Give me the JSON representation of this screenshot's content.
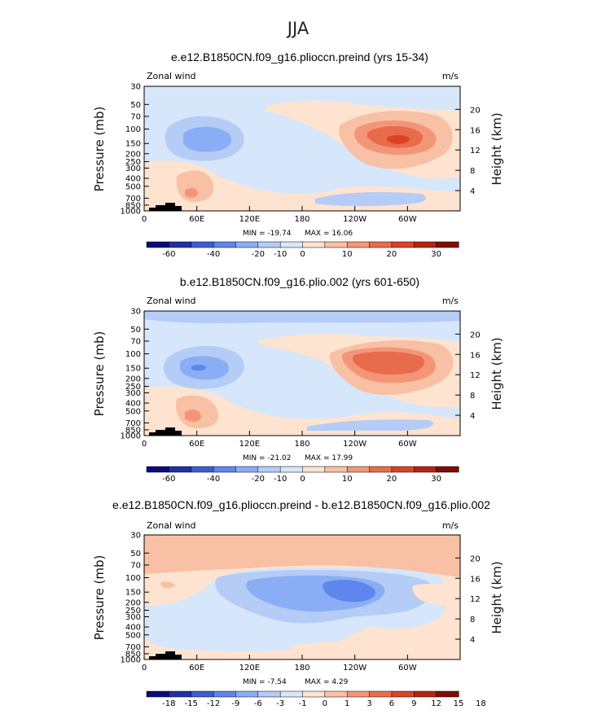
{
  "figure_title": "JJA",
  "chart_data": [
    {
      "type": "contour",
      "title": "e.e12.B1850CN.f09_g16.plioccn.preind (yrs 15-34)",
      "left_label": "Zonal wind",
      "right_label": "m/s",
      "ylabel": "Pressure (mb)",
      "y2label": "Height (km)",
      "pressure_ticks": [
        "30",
        "50",
        "70",
        "100",
        "150",
        "200",
        "250",
        "300",
        "400",
        "500",
        "700",
        "850",
        "1000"
      ],
      "height_ticks": [
        "4",
        "8",
        "12",
        "16",
        "20"
      ],
      "x_ticks": [
        "0",
        "60E",
        "120E",
        "180",
        "120W",
        "60W"
      ],
      "min_label": "MIN = -19.74",
      "max_label": "MAX =  16.06",
      "colorbar_labels": [
        "-60",
        "-40",
        "-20",
        "-10",
        "0",
        "10",
        "20",
        "30"
      ],
      "colorbar_colors": [
        "#0a0a7a",
        "#1f2fa8",
        "#3d5dd6",
        "#5e86ec",
        "#8aaef5",
        "#b4ccf6",
        "#d6e6fb",
        "#fde3d0",
        "#f8c0a4",
        "#f39678",
        "#e86c4c",
        "#db4226",
        "#b52512",
        "#7e0e06"
      ]
    },
    {
      "type": "contour",
      "title": "b.e12.B1850CN.f09_g16.plio.002 (yrs 601-650)",
      "left_label": "Zonal wind",
      "right_label": "m/s",
      "ylabel": "Pressure (mb)",
      "y2label": "Height (km)",
      "pressure_ticks": [
        "30",
        "50",
        "70",
        "100",
        "150",
        "200",
        "250",
        "300",
        "400",
        "500",
        "700",
        "850",
        "1000"
      ],
      "height_ticks": [
        "4",
        "8",
        "12",
        "16",
        "20"
      ],
      "x_ticks": [
        "0",
        "60E",
        "120E",
        "180",
        "120W",
        "60W"
      ],
      "min_label": "MIN = -21.02",
      "max_label": "MAX =  17.99",
      "colorbar_labels": [
        "-60",
        "-40",
        "-20",
        "-10",
        "0",
        "10",
        "20",
        "30"
      ],
      "colorbar_colors": [
        "#0a0a7a",
        "#1f2fa8",
        "#3d5dd6",
        "#5e86ec",
        "#8aaef5",
        "#b4ccf6",
        "#d6e6fb",
        "#fde3d0",
        "#f8c0a4",
        "#f39678",
        "#e86c4c",
        "#db4226",
        "#b52512",
        "#7e0e06"
      ]
    },
    {
      "type": "contour",
      "title": "e.e12.B1850CN.f09_g16.plioccn.preind - b.e12.B1850CN.f09_g16.plio.002",
      "left_label": "Zonal wind",
      "right_label": "m/s",
      "ylabel": "Pressure (mb)",
      "y2label": "Height (km)",
      "pressure_ticks": [
        "30",
        "50",
        "70",
        "100",
        "150",
        "200",
        "250",
        "300",
        "400",
        "500",
        "700",
        "850",
        "1000"
      ],
      "height_ticks": [
        "4",
        "8",
        "12",
        "16",
        "20"
      ],
      "x_ticks": [
        "0",
        "60E",
        "120E",
        "180",
        "120W",
        "60W"
      ],
      "min_label": "MIN =  -7.54",
      "max_label": "MAX =   4.29",
      "colorbar_labels": [
        "-18",
        "-15",
        "-12",
        "-9",
        "-6",
        "-3",
        "-1",
        "0",
        "1",
        "3",
        "6",
        "9",
        "12",
        "15",
        "18"
      ],
      "colorbar_colors": [
        "#0a0a7a",
        "#1f2fa8",
        "#3d5dd6",
        "#5e86ec",
        "#8aaef5",
        "#b4ccf6",
        "#d6e6fb",
        "#fde3d0",
        "#f8c0a4",
        "#f39678",
        "#e86c4c",
        "#db4226",
        "#b52512",
        "#7e0e06"
      ]
    }
  ]
}
